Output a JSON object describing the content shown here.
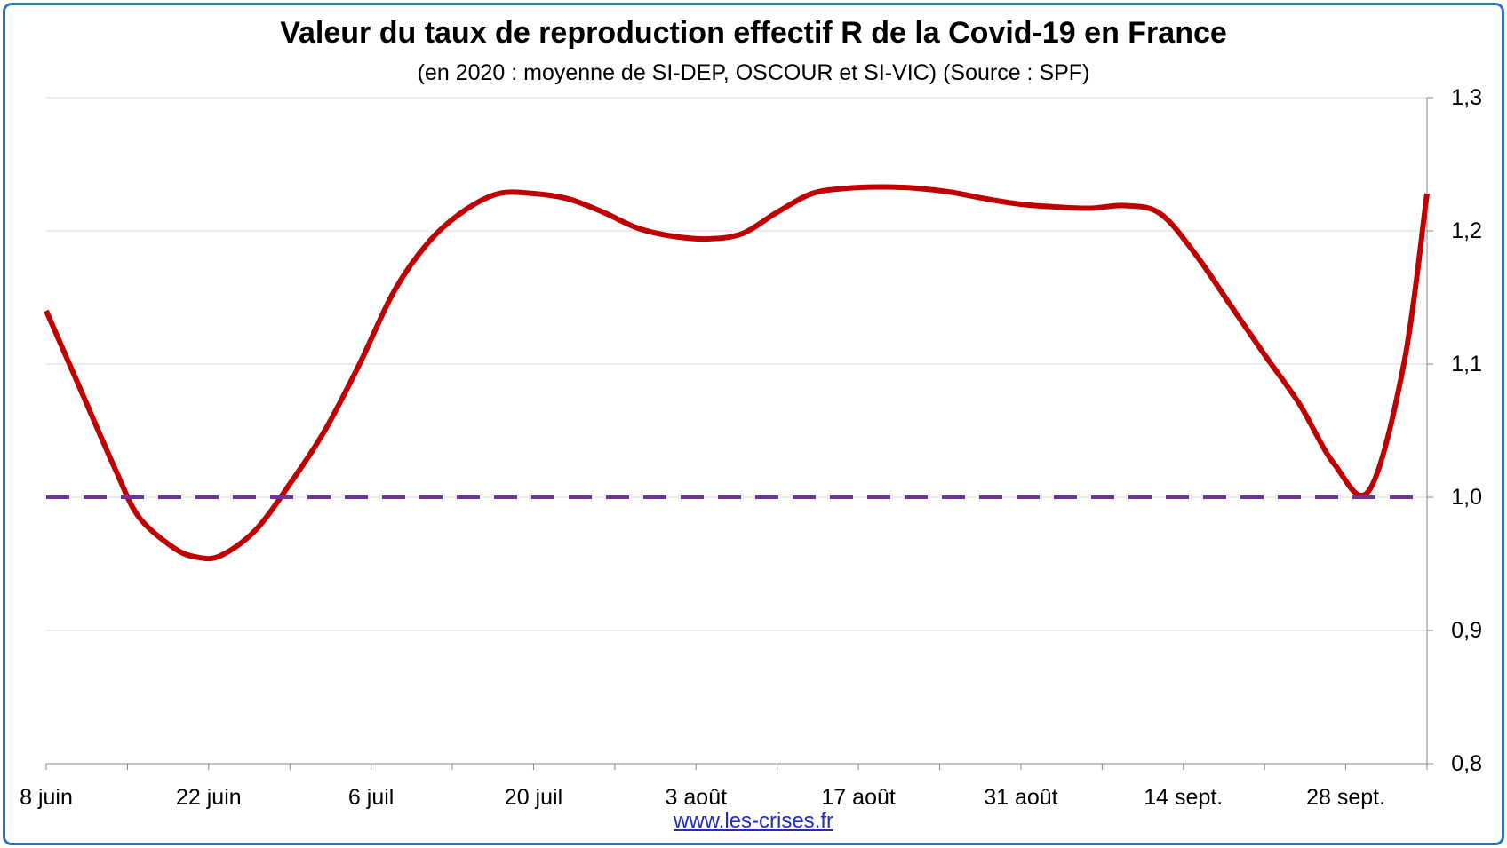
{
  "chart_data": {
    "type": "line",
    "title": "Valeur du taux de reproduction effectif R de la Covid-19 en France",
    "subtitle": "(en 2020 : moyenne de SI-DEP, OSCOUR et SI-VIC) (Source : SPF)",
    "x_tick_labels": [
      "8 juin",
      "22 juin",
      "6 juil",
      "20 juil",
      "3 août",
      "17 août",
      "31 août",
      "14 sept.",
      "28 sept."
    ],
    "y_tick_labels": [
      "0,8",
      "0,9",
      "1,0",
      "1,1",
      "1,2",
      "1,3"
    ],
    "ylim": [
      0.8,
      1.3
    ],
    "xlim_days_from_8_june": [
      0,
      119
    ],
    "grid": true,
    "y_axis_side": "right",
    "series": [
      {
        "type": "line",
        "color": "#c00000",
        "x_days": [
          0,
          3,
          6,
          8,
          11,
          13,
          15,
          18,
          21,
          24,
          27,
          30,
          33,
          36,
          39,
          42,
          45,
          48,
          51,
          54,
          57,
          60,
          63,
          66,
          69,
          72,
          75,
          78,
          81,
          84,
          87,
          90,
          93,
          96,
          99,
          102,
          105,
          108,
          111,
          114,
          117,
          119
        ],
        "y": [
          1.14,
          1.08,
          1.02,
          0.985,
          0.962,
          0.955,
          0.956,
          0.975,
          1.01,
          1.05,
          1.1,
          1.155,
          1.192,
          1.215,
          1.228,
          1.228,
          1.224,
          1.214,
          1.202,
          1.196,
          1.194,
          1.198,
          1.214,
          1.228,
          1.232,
          1.233,
          1.232,
          1.229,
          1.224,
          1.22,
          1.218,
          1.217,
          1.219,
          1.213,
          1.183,
          1.145,
          1.107,
          1.07,
          1.025,
          1.005,
          1.1,
          1.228
        ]
      },
      {
        "type": "line",
        "style": "dashed",
        "color": "#7030a0",
        "x_days": [
          0,
          119
        ],
        "y": [
          1.0,
          1.0
        ]
      }
    ]
  },
  "source": "www.les-crises.fr"
}
